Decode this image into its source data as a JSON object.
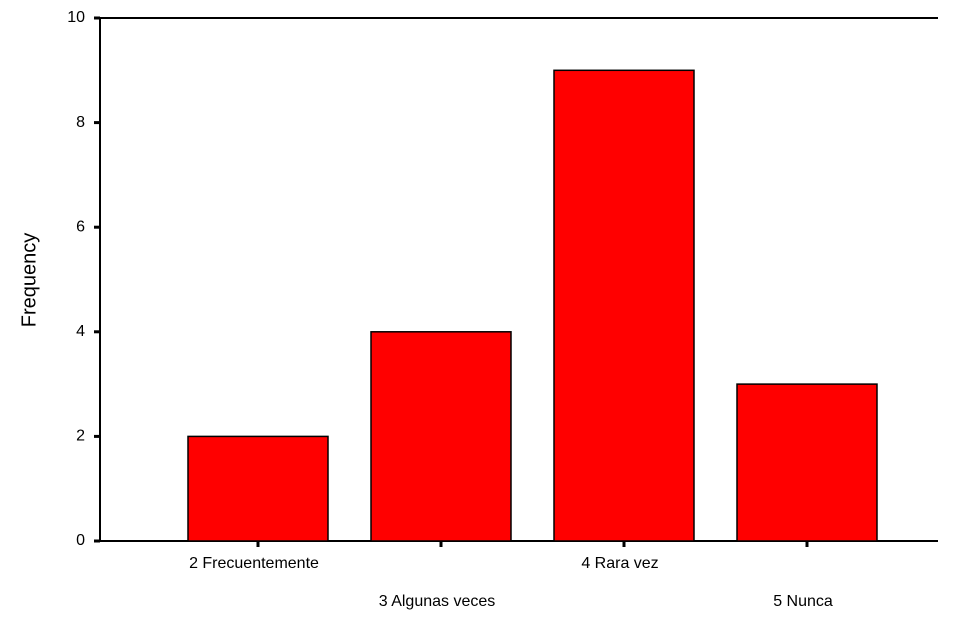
{
  "chart_data": {
    "type": "bar",
    "y_label": "Frequency",
    "categories": [
      "2 Frecuentemente",
      "3 Algunas veces",
      "4 Rara vez",
      "5 Nunca"
    ],
    "values": [
      2,
      4,
      9,
      3
    ],
    "color": "#ff0000",
    "ylim": [
      0,
      10
    ],
    "yticks": [
      0,
      2,
      4,
      6,
      8,
      10
    ]
  }
}
